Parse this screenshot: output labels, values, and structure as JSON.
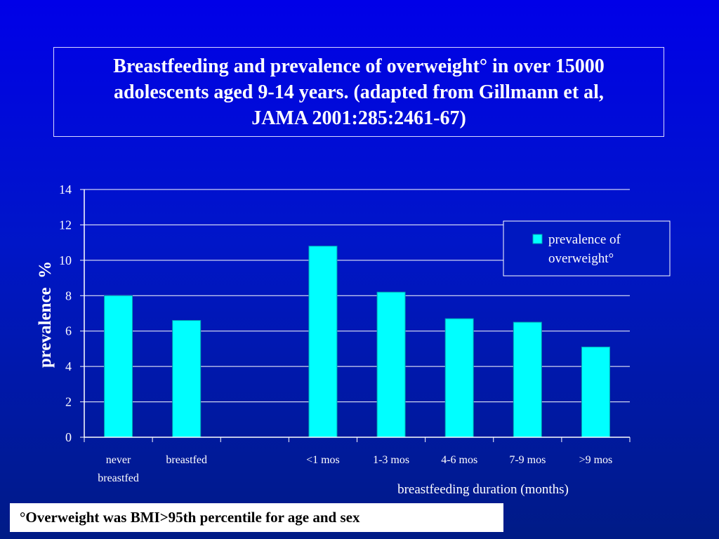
{
  "slide": {
    "title": "Breastfeeding and prevalence of overweight° in over 15000 adolescents aged 9-14 years. (adapted from Gillmann et al, JAMA 2001:285:2461-67)",
    "footnote": "°Overweight was BMI>95th percentile for age and sex"
  },
  "colors": {
    "bar": "#00ffff",
    "axis": "#ffffff",
    "legend_bg": "#0018c0"
  },
  "chart_data": {
    "type": "bar",
    "categories": [
      [
        "never",
        "breastfed"
      ],
      [
        "breastfed"
      ],
      [
        ""
      ],
      [
        "<1 mos"
      ],
      [
        "1-3 mos"
      ],
      [
        "4-6 mos"
      ],
      [
        "7-9 mos"
      ],
      [
        ">9 mos"
      ]
    ],
    "series": [
      {
        "name": "prevalence of overweight°",
        "values": [
          8.0,
          6.6,
          null,
          10.8,
          8.2,
          6.7,
          6.5,
          5.1
        ]
      }
    ],
    "ylabel": "prevalence  %",
    "xlabel": "breastfeeding duration (months)",
    "ylim": [
      0,
      14
    ],
    "yticks": [
      0,
      2,
      4,
      6,
      8,
      10,
      12,
      14
    ],
    "legend_lines": [
      "prevalence of",
      "overweight°"
    ],
    "legend_position": "top-right",
    "grid": true
  }
}
